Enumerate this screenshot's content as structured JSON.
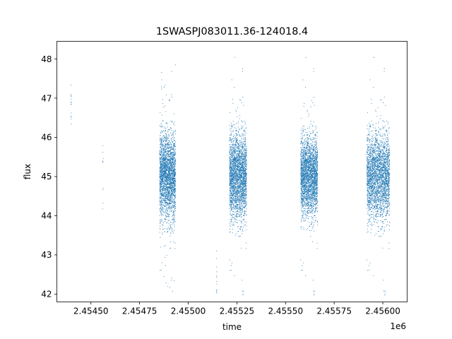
{
  "chart_data": {
    "type": "scatter",
    "title": "1SWASPJ083011.36-124018.4",
    "xlabel": "time",
    "ylabel": "flux",
    "x_offset_label": "1e6",
    "x_unit_scale": 1000000,
    "xlim": [
      2454325,
      2456125
    ],
    "ylim": [
      41.8,
      48.45
    ],
    "x_ticks": [
      2454500,
      2454750,
      2455000,
      2455250,
      2455500,
      2455750,
      2456000
    ],
    "x_tick_labels": [
      "2.45450",
      "2.45475",
      "2.45500",
      "2.45525",
      "2.45550",
      "2.45575",
      "2.45600"
    ],
    "y_ticks": [
      42,
      43,
      44,
      45,
      46,
      47,
      48
    ],
    "y_tick_labels": [
      "42",
      "43",
      "44",
      "45",
      "46",
      "47",
      "48"
    ],
    "grid": false,
    "legend": "none",
    "marker_color": "#1f77b4",
    "series": [
      {
        "clusters": [
          {
            "x_range": [
              2454397,
              2454399
            ],
            "y_center": 46.9,
            "y_sd": 0.35,
            "count": 14
          },
          {
            "x_range": [
              2454560,
              2454563
            ],
            "y_center": 45.5,
            "y_sd": 0.45,
            "count": 10
          },
          {
            "x_range": [
              2454853,
              2454935
            ],
            "y_center": 45.0,
            "y_sd": 0.55,
            "count": 2600
          },
          {
            "x_range": [
              2455144,
              2455147
            ],
            "y_center": 42.5,
            "y_sd": 0.25,
            "count": 12
          },
          {
            "x_range": [
              2455212,
              2455300
            ],
            "y_center": 45.0,
            "y_sd": 0.55,
            "count": 2600
          },
          {
            "x_range": [
              2455578,
              2455665
            ],
            "y_center": 45.0,
            "y_sd": 0.5,
            "count": 2600
          },
          {
            "x_range": [
              2455918,
              2456035
            ],
            "y_center": 45.0,
            "y_sd": 0.55,
            "count": 3000
          }
        ]
      }
    ]
  }
}
